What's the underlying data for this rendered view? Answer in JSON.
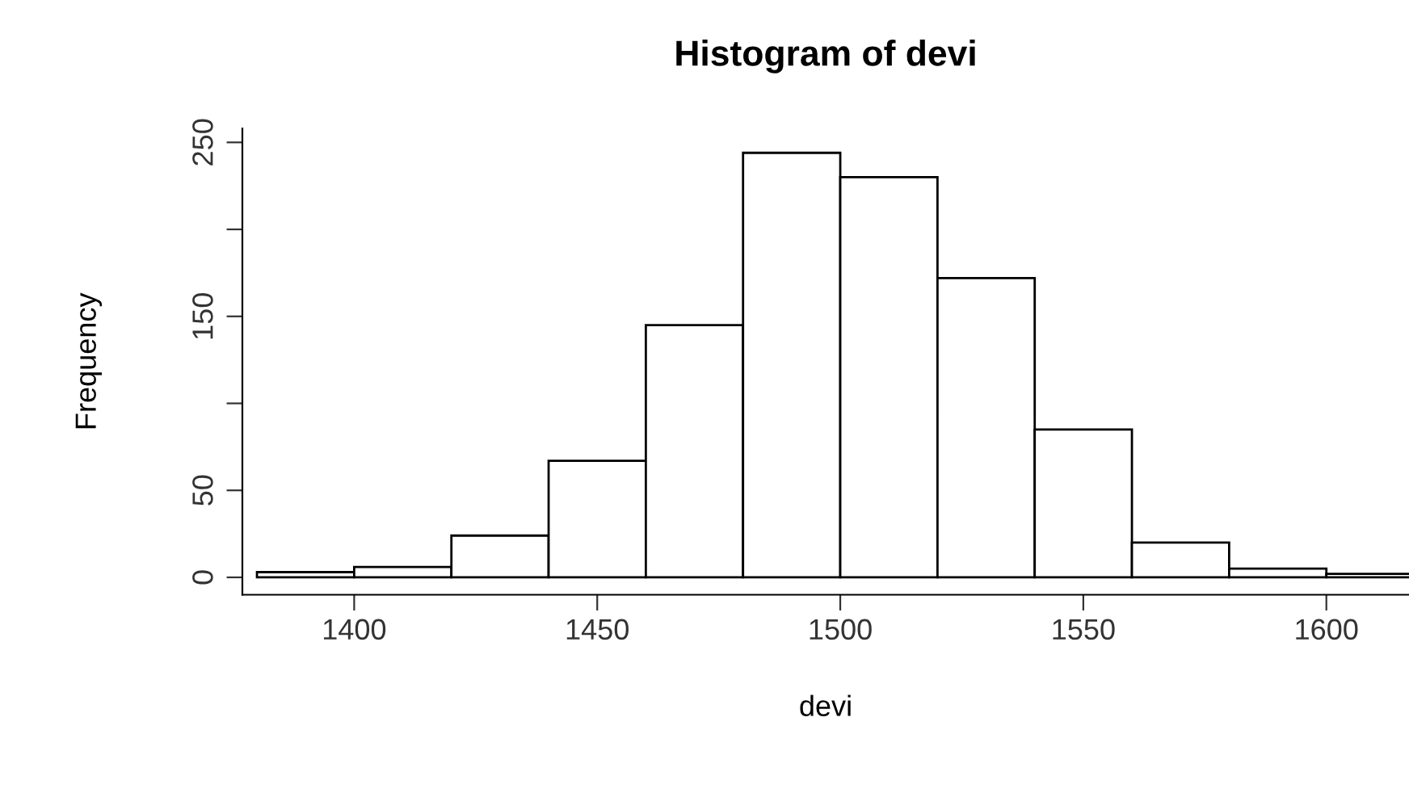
{
  "chart_data": {
    "type": "histogram",
    "title": "Histogram of devi",
    "xlabel": "devi",
    "ylabel": "Frequency",
    "bins": [
      1380,
      1400,
      1420,
      1440,
      1460,
      1480,
      1500,
      1520,
      1540,
      1560,
      1580,
      1600,
      1620
    ],
    "values": [
      3,
      6,
      24,
      67,
      145,
      244,
      230,
      172,
      85,
      20,
      5,
      2
    ],
    "color": "#ffffff",
    "xlim": [
      1377,
      1617
    ],
    "ylim": [
      -10,
      258
    ],
    "xticks": [
      1400,
      1450,
      1500,
      1550,
      1600
    ],
    "yticks": [
      0,
      50,
      {
        "value": 100,
        "label": null
      },
      150,
      {
        "value": 200,
        "label": null
      },
      250
    ],
    "grid": false
  }
}
